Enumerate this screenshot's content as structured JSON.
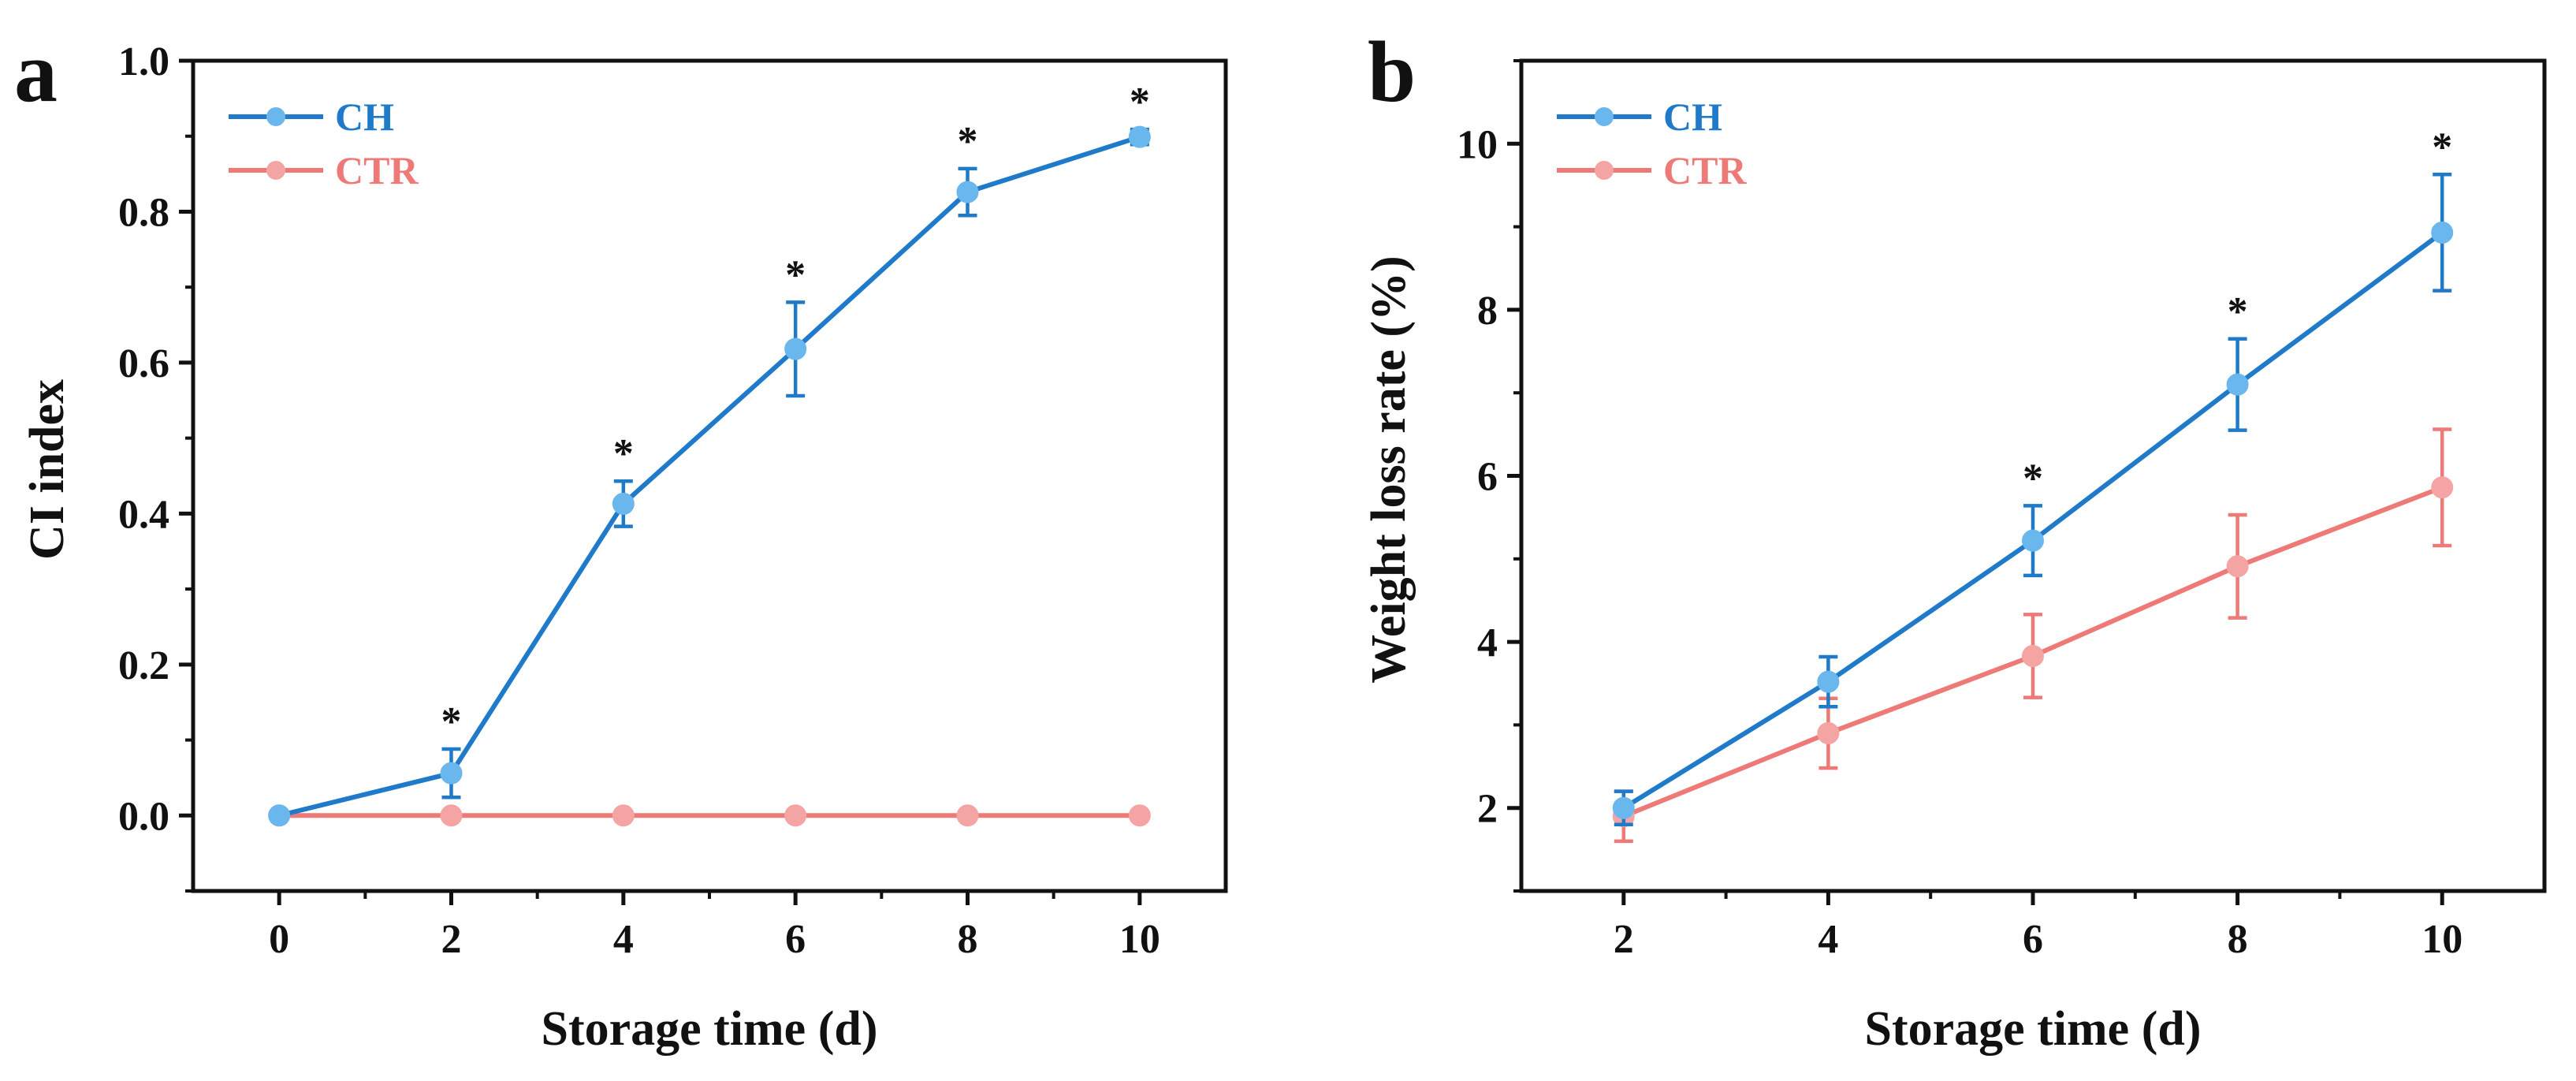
{
  "chart_data": [
    {
      "panel": "a",
      "type": "line",
      "xlabel": "Storage time (d)",
      "ylabel": "CI index",
      "xlim": [
        -1,
        11
      ],
      "ylim": [
        -0.1,
        1.0
      ],
      "xticks": [
        0,
        2,
        4,
        6,
        8,
        10
      ],
      "xtick_labels": [
        "0",
        "2",
        "4",
        "6",
        "8",
        "10"
      ],
      "yticks": [
        0.0,
        0.2,
        0.4,
        0.6,
        0.8,
        1.0
      ],
      "ytick_labels": [
        "0.0",
        "0.2",
        "0.4",
        "0.6",
        "0.8",
        "1.0"
      ],
      "legend_position": "top-left",
      "series": [
        {
          "name": "CH",
          "color": "#1f7ac9",
          "marker_color": "#6ab7ee",
          "x": [
            0,
            2,
            4,
            6,
            8,
            10
          ],
          "y": [
            0.0,
            0.056,
            0.413,
            0.618,
            0.826,
            0.899
          ],
          "err": [
            0.0,
            0.032,
            0.03,
            0.062,
            0.031,
            0.01
          ],
          "significance": [
            "",
            "*",
            "*",
            "*",
            "*",
            "*"
          ]
        },
        {
          "name": "CTR",
          "color": "#ee7a78",
          "marker_color": "#f4a5a3",
          "x": [
            0,
            2,
            4,
            6,
            8,
            10
          ],
          "y": [
            0.0,
            0.0,
            0.0,
            0.0,
            0.0,
            0.0
          ],
          "err": [
            0,
            0,
            0,
            0,
            0,
            0
          ],
          "significance": [
            "",
            "",
            "",
            "",
            "",
            ""
          ]
        }
      ]
    },
    {
      "panel": "b",
      "type": "line",
      "xlabel": "Storage time (d)",
      "ylabel": "Weight loss rate (%)",
      "xlim": [
        1,
        11
      ],
      "ylim": [
        1,
        11
      ],
      "xticks": [
        2,
        4,
        6,
        8,
        10
      ],
      "xtick_labels": [
        "2",
        "4",
        "6",
        "8",
        "10"
      ],
      "yticks": [
        2,
        4,
        6,
        8,
        10
      ],
      "ytick_labels": [
        "2",
        "4",
        "6",
        "8",
        "10"
      ],
      "legend_position": "top-left",
      "series": [
        {
          "name": "CH",
          "color": "#1f7ac9",
          "marker_color": "#6ab7ee",
          "x": [
            2,
            4,
            6,
            8,
            10
          ],
          "y": [
            2.0,
            3.52,
            5.22,
            7.1,
            8.93
          ],
          "err": [
            0.2,
            0.3,
            0.42,
            0.55,
            0.7
          ],
          "significance": [
            "",
            "",
            "*",
            "*",
            "*"
          ]
        },
        {
          "name": "CTR",
          "color": "#ee7a78",
          "marker_color": "#f4a5a3",
          "x": [
            2,
            4,
            6,
            8,
            10
          ],
          "y": [
            1.9,
            2.9,
            3.83,
            4.91,
            5.86
          ],
          "err": [
            0.3,
            0.42,
            0.5,
            0.62,
            0.7
          ],
          "significance": [
            "",
            "",
            "",
            "",
            ""
          ]
        }
      ]
    }
  ]
}
